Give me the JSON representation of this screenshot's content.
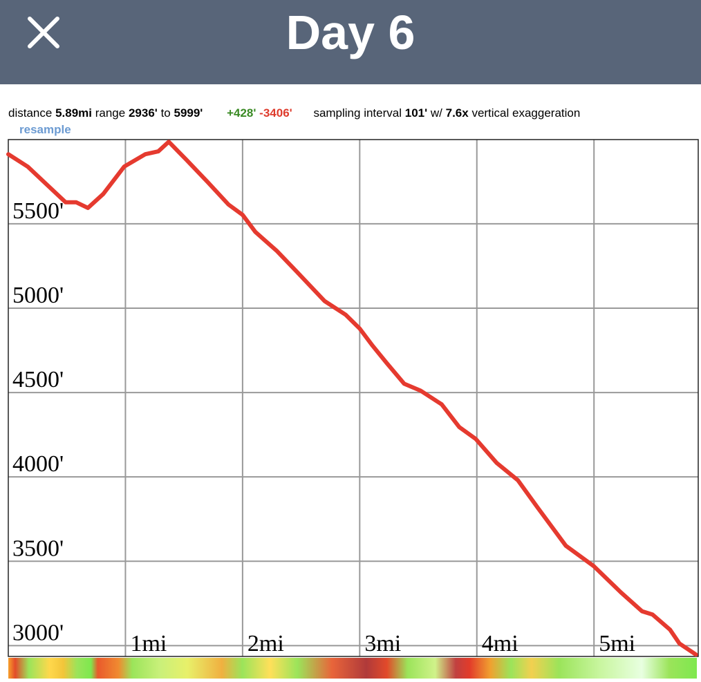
{
  "header": {
    "title": "Day 6"
  },
  "info": {
    "distance_label": "distance",
    "distance": "5.89mi",
    "range_label": "range",
    "range_min": "2936'",
    "range_to": "to",
    "range_max": "5999'",
    "gain": "+428'",
    "loss": "-3406'",
    "interval_label": "sampling interval",
    "interval": "101'",
    "with": "w/",
    "exaggeration": "7.6x",
    "exaggeration_label": "vertical exaggeration",
    "resample": "resample"
  },
  "chart_data": {
    "type": "line",
    "x": [
      0,
      0.165,
      0.34,
      0.49,
      0.58,
      0.68,
      0.81,
      0.99,
      1.17,
      1.28,
      1.37,
      1.52,
      1.7,
      1.88,
      2.0,
      2.11,
      2.29,
      2.46,
      2.7,
      2.88,
      3.0,
      3.11,
      3.23,
      3.38,
      3.52,
      3.7,
      3.85,
      3.99,
      4.17,
      4.35,
      4.52,
      4.76,
      5.0,
      5.23,
      5.41,
      5.5,
      5.65,
      5.73,
      5.87
    ],
    "series": [
      {
        "color": "#e53a2f",
        "values": [
          5912,
          5839,
          5725,
          5627,
          5627,
          5594,
          5676,
          5839,
          5912,
          5929,
          5986,
          5880,
          5749,
          5614,
          5553,
          5451,
          5341,
          5218,
          5042,
          4961,
          4879,
          4777,
          4675,
          4552,
          4511,
          4430,
          4295,
          4225,
          4082,
          3980,
          3817,
          3592,
          3470,
          3315,
          3204,
          3184,
          3094,
          3012,
          2947
        ]
      }
    ],
    "xlim": [
      0,
      5.89
    ],
    "ylim": [
      2936,
      5999
    ],
    "xticks": [
      {
        "value": 1,
        "label": "1mi"
      },
      {
        "value": 2,
        "label": "2mi"
      },
      {
        "value": 3,
        "label": "3mi"
      },
      {
        "value": 4,
        "label": "4mi"
      },
      {
        "value": 5,
        "label": "5mi"
      }
    ],
    "yticks": [
      {
        "value": 3000,
        "label": "3000'"
      },
      {
        "value": 3500,
        "label": "3500'"
      },
      {
        "value": 4000,
        "label": "4000'"
      },
      {
        "value": 4500,
        "label": "4500'"
      },
      {
        "value": 5000,
        "label": "5000'"
      },
      {
        "value": 5500,
        "label": "5500'"
      }
    ],
    "grid": true
  }
}
